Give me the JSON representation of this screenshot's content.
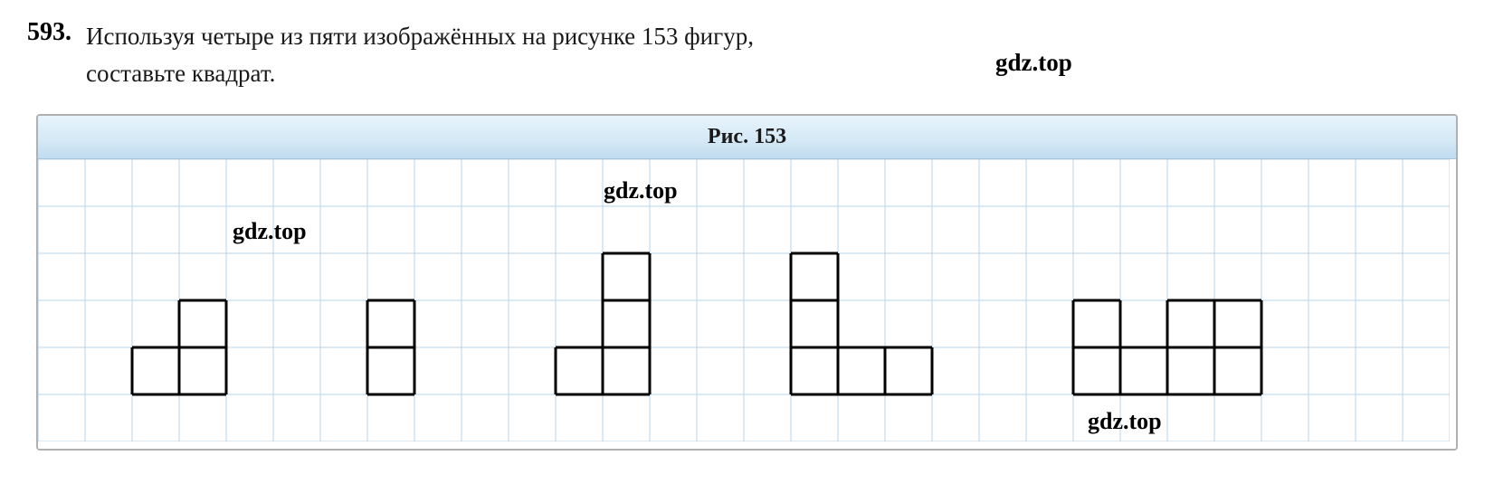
{
  "problem": {
    "number": "593.",
    "text_line1": "Используя четыре из пяти изображённых на рисунке 153 фигур,",
    "text_line2": "составьте квадрат."
  },
  "figure": {
    "label": "Рис. 153",
    "grid": {
      "cols": 30,
      "rows": 6,
      "cell_size": 52,
      "grid_color": "#b5d5ec",
      "background_color": "#ffffff",
      "shape_stroke_color": "#000000",
      "shape_stroke_width": 3
    }
  },
  "watermarks": {
    "w1": "gdz.top",
    "w2": "gdz.top",
    "w3": "gdz.top",
    "w4": "gdz.top"
  },
  "shapes": [
    {
      "name": "shape-1",
      "cells": [
        [
          2,
          4
        ],
        [
          3,
          4
        ],
        [
          3,
          3
        ]
      ]
    },
    {
      "name": "shape-2",
      "cells": [
        [
          7,
          3
        ],
        [
          7,
          4
        ]
      ]
    },
    {
      "name": "shape-3",
      "cells": [
        [
          12,
          2
        ],
        [
          12,
          3
        ],
        [
          12,
          4
        ],
        [
          11,
          4
        ]
      ]
    },
    {
      "name": "shape-4",
      "cells": [
        [
          16,
          2
        ],
        [
          16,
          3
        ],
        [
          16,
          4
        ],
        [
          17,
          4
        ],
        [
          18,
          4
        ]
      ]
    },
    {
      "name": "shape-5",
      "cells": [
        [
          22,
          3
        ],
        [
          22,
          4
        ],
        [
          23,
          4
        ],
        [
          24,
          3
        ],
        [
          24,
          4
        ],
        [
          25,
          3
        ],
        [
          25,
          4
        ]
      ]
    }
  ]
}
